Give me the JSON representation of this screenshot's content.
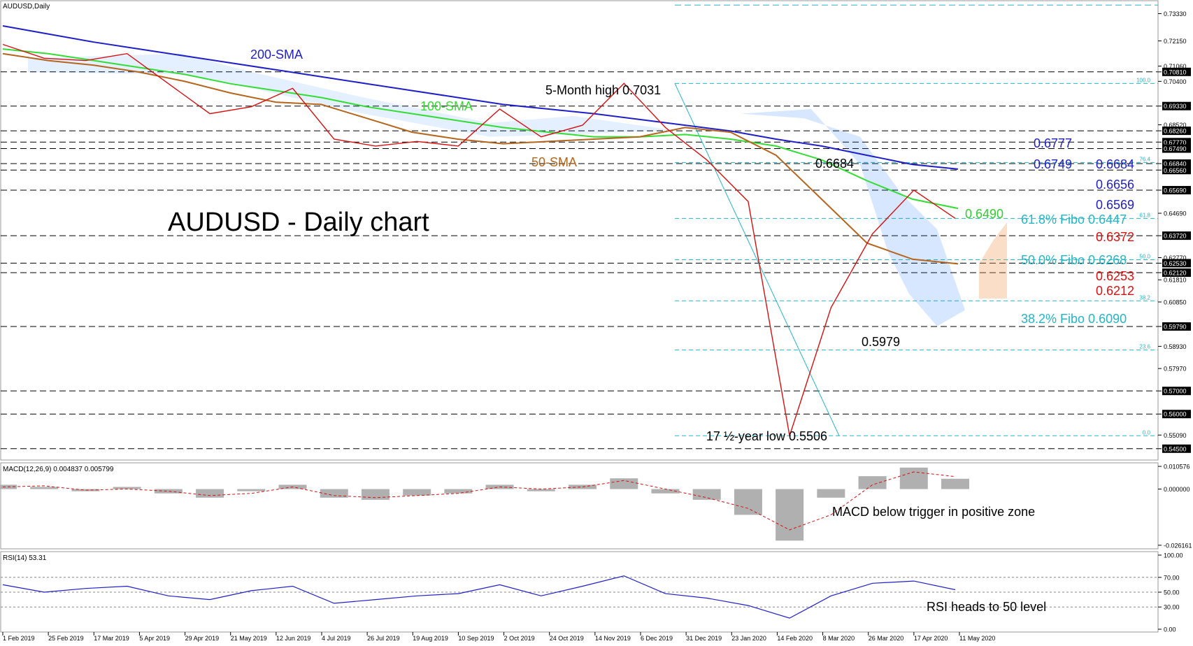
{
  "symbol_label": "AUDUSD,Daily",
  "main_title": "AUDUSD - Daily chart",
  "chart_data": {
    "type": "line",
    "price_axis": {
      "ylim": [
        0.541,
        0.738
      ],
      "ticks": [
        "0.73330",
        "0.72150",
        "0.71060",
        "0.70810",
        "0.70400",
        "0.69330",
        "0.68520",
        "0.68260",
        "0.67770",
        "0.67490",
        "0.66840",
        "0.66560",
        "0.65690",
        "0.64690",
        "0.63720",
        "0.62770",
        "0.62530",
        "0.62120",
        "0.61810",
        "0.60850",
        "0.59790",
        "0.58930",
        "0.57970",
        "0.57000",
        "0.56000",
        "0.55090",
        "0.54500"
      ]
    },
    "x_ticks": [
      "1 Feb 2019",
      "25 Feb 2019",
      "17 Mar 2019",
      "5 Apr 2019",
      "29 Apr 2019",
      "21 May 2019",
      "12 Jun 2019",
      "4 Jul 2019",
      "26 Jul 2019",
      "19 Aug 2019",
      "10 Sep 2019",
      "2 Oct 2019",
      "24 Oct 2019",
      "14 Nov 2019",
      "6 Dec 2019",
      "31 Dec 2019",
      "23 Jan 2020",
      "14 Feb 2020",
      "8 Mar 2020",
      "26 Mar 2020",
      "17 Apr 2020",
      "11 May 2020"
    ],
    "horizontal_levels": [
      0.7081,
      0.6933,
      0.6826,
      0.6777,
      0.6749,
      0.6684,
      0.6656,
      0.6569,
      0.6372,
      0.6253,
      0.6212,
      0.5979,
      0.57,
      0.56,
      0.545
    ],
    "fibo_levels": [
      {
        "label": "100.0",
        "value": 0.7031
      },
      {
        "label": "76.4",
        "value": 0.6689
      },
      {
        "label": "61.8",
        "value": 0.6447
      },
      {
        "label": "50.0",
        "value": 0.6268
      },
      {
        "label": "38.2",
        "value": 0.609
      },
      {
        "label": "23.6",
        "value": 0.5877
      },
      {
        "label": "0.0",
        "value": 0.5506
      }
    ],
    "top_level": 0.737,
    "series": [
      {
        "name": "200-SMA",
        "color": "#1f1fc8",
        "values": [
          0.728,
          0.7245,
          0.721,
          0.718,
          0.715,
          0.712,
          0.709,
          0.706,
          0.703,
          0.7,
          0.697,
          0.694,
          0.692,
          0.69,
          0.6875,
          0.685,
          0.6825,
          0.679,
          0.676,
          0.672,
          0.668,
          0.666
        ]
      },
      {
        "name": "100-SMA",
        "color": "#33dd33",
        "values": [
          0.718,
          0.716,
          0.713,
          0.71,
          0.707,
          0.703,
          0.7,
          0.697,
          0.693,
          0.69,
          0.687,
          0.684,
          0.682,
          0.68,
          0.68,
          0.681,
          0.679,
          0.676,
          0.67,
          0.661,
          0.653,
          0.649
        ]
      },
      {
        "name": "50-SMA",
        "color": "#b5651d",
        "values": [
          0.716,
          0.713,
          0.711,
          0.708,
          0.704,
          0.699,
          0.695,
          0.694,
          0.688,
          0.682,
          0.679,
          0.677,
          0.678,
          0.679,
          0.68,
          0.684,
          0.682,
          0.672,
          0.653,
          0.634,
          0.627,
          0.625
        ]
      },
      {
        "name": "Price",
        "color": "#d61010",
        "values": [
          0.72,
          0.714,
          0.713,
          0.716,
          0.703,
          0.69,
          0.693,
          0.701,
          0.679,
          0.676,
          0.678,
          0.676,
          0.692,
          0.68,
          0.685,
          0.7031,
          0.684,
          0.67,
          0.652,
          0.5506,
          0.606,
          0.638,
          0.6569,
          0.6447
        ]
      }
    ],
    "annotations": [
      {
        "text": "200-SMA",
        "color": "#1f1fc8"
      },
      {
        "text": "100-SMA",
        "color": "#33dd33"
      },
      {
        "text": "50-SMA",
        "color": "#b5651d"
      },
      {
        "text": "5-Month high 0.7031",
        "color": "#000000"
      },
      {
        "text": "0.6684",
        "color": "#000000"
      },
      {
        "text": "0.5979",
        "color": "#000000"
      },
      {
        "text": "17 ½-year low 0.5506",
        "color": "#000000"
      },
      {
        "text": "0.6777",
        "color": "#1f1fc8"
      },
      {
        "text": "0.6749",
        "color": "#1f1fc8"
      },
      {
        "text": "0.6684",
        "color": "#1f1fc8"
      },
      {
        "text": "0.6656",
        "color": "#1f1fc8"
      },
      {
        "text": "0.6569",
        "color": "#1f1fc8"
      },
      {
        "text": "0.6490",
        "color": "#33cc33"
      },
      {
        "text": "61.8% Fibo 0.6447",
        "color": "#23b5c8"
      },
      {
        "text": "0.6372",
        "color": "#e01010"
      },
      {
        "text": "50.0% Fibo 0.6268",
        "color": "#23b5c8"
      },
      {
        "text": "0.6253",
        "color": "#e01010"
      },
      {
        "text": "0.6212",
        "color": "#e01010"
      },
      {
        "text": "38.2% Fibo 0.6090",
        "color": "#23b5c8"
      }
    ],
    "macd": {
      "label": "MACD(12,26,9) 0.004837 0.005799",
      "ticks": [
        "0.010576",
        "0.000000",
        "-0.026161"
      ],
      "ylim": [
        -0.0262,
        0.0106
      ],
      "histogram": [
        0.002,
        0.001,
        -0.001,
        0.001,
        -0.002,
        -0.004,
        -0.001,
        0.002,
        -0.004,
        -0.005,
        -0.003,
        -0.002,
        0.002,
        -0.001,
        0.002,
        0.005,
        -0.002,
        -0.005,
        -0.012,
        -0.024,
        -0.004,
        0.006,
        0.01,
        0.0048
      ],
      "signal": [
        0.001,
        0.0015,
        -0.0005,
        0.0,
        -0.001,
        -0.003,
        -0.002,
        0.001,
        -0.003,
        -0.004,
        -0.003,
        -0.002,
        0.001,
        0.0,
        0.001,
        0.004,
        0.0,
        -0.004,
        -0.009,
        -0.019,
        -0.012,
        0.002,
        0.008,
        0.0058
      ],
      "annotation": "MACD below trigger in positive zone"
    },
    "rsi": {
      "label": "RSI(14) 53.31",
      "ticks": [
        "100.00",
        "70.00",
        "50.00",
        "30.00",
        "0.00"
      ],
      "ylim": [
        0,
        100
      ],
      "levels": [
        70,
        50,
        30
      ],
      "values": [
        60,
        50,
        55,
        58,
        45,
        40,
        52,
        58,
        35,
        40,
        45,
        48,
        60,
        45,
        58,
        72,
        48,
        42,
        32,
        15,
        45,
        62,
        65,
        53.31
      ],
      "annotation": "RSI heads to 50 level"
    }
  }
}
